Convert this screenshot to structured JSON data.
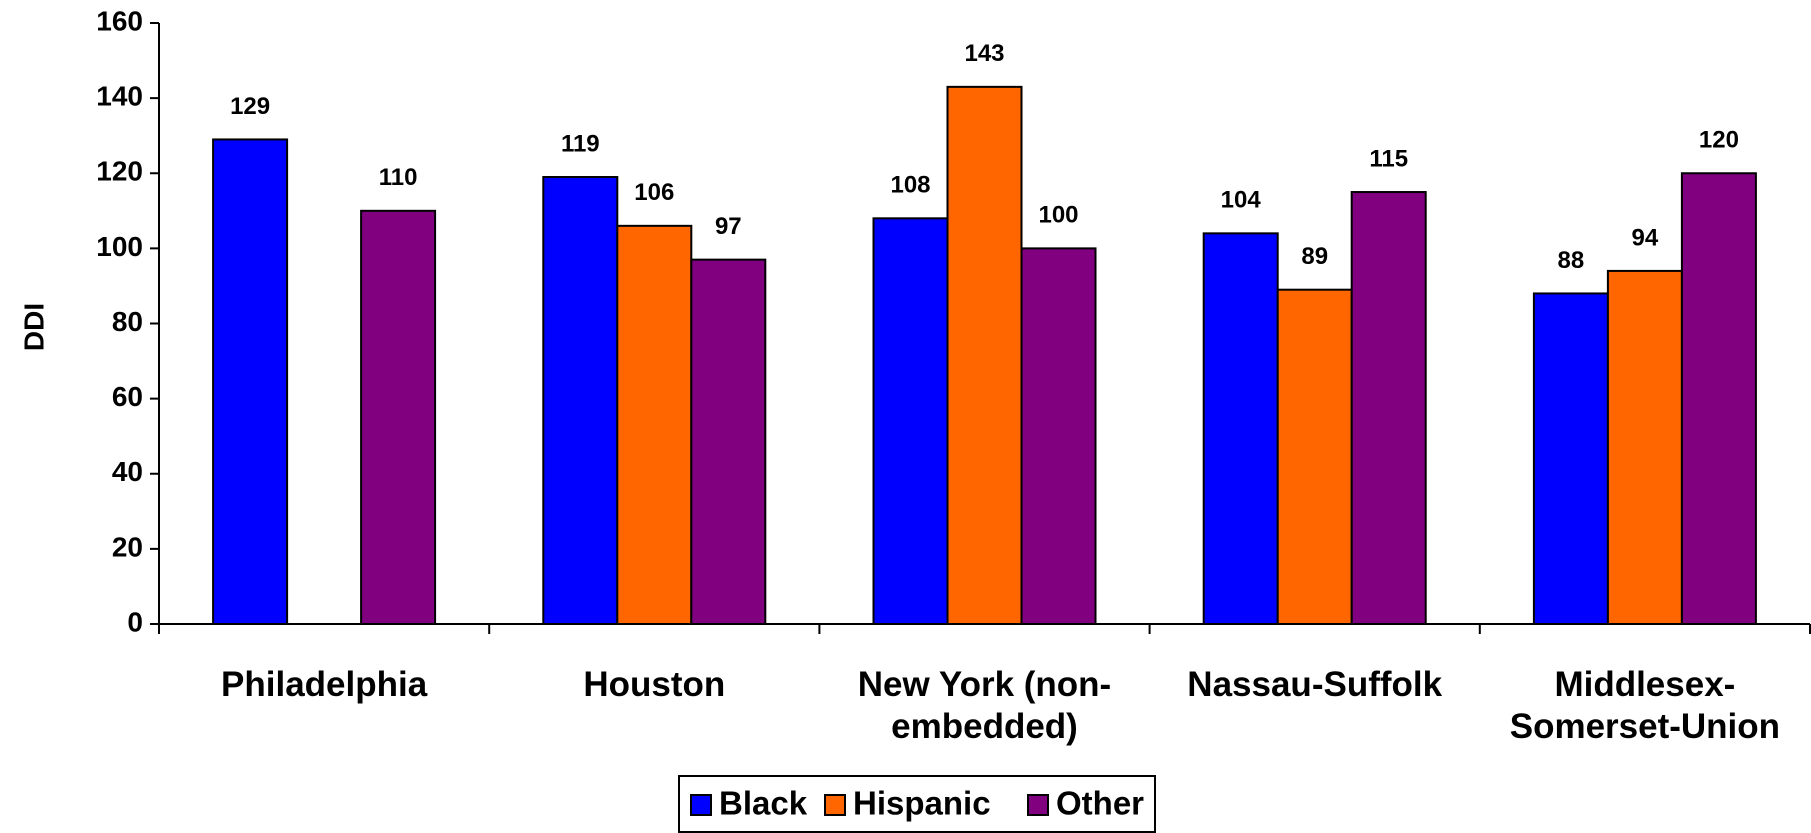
{
  "chart_data": {
    "type": "bar",
    "y_label": "DDI",
    "categories": [
      "Philadelphia",
      "Houston",
      "New York (non-embedded)",
      "Nassau-Suffolk",
      "Middlesex-Somerset-Union"
    ],
    "series": [
      {
        "name": "Black",
        "color": "#0000ff",
        "values": [
          129,
          119,
          108,
          104,
          88
        ]
      },
      {
        "name": "Hispanic",
        "color": "#ff6600",
        "values": [
          null,
          106,
          143,
          89,
          94
        ]
      },
      {
        "name": "Other",
        "color": "#800080",
        "values": [
          110,
          97,
          100,
          115,
          120
        ]
      }
    ],
    "ylim": [
      0,
      160
    ],
    "yticks": [
      0,
      20,
      40,
      60,
      80,
      100,
      120,
      140,
      160
    ],
    "legend": "bottom"
  }
}
